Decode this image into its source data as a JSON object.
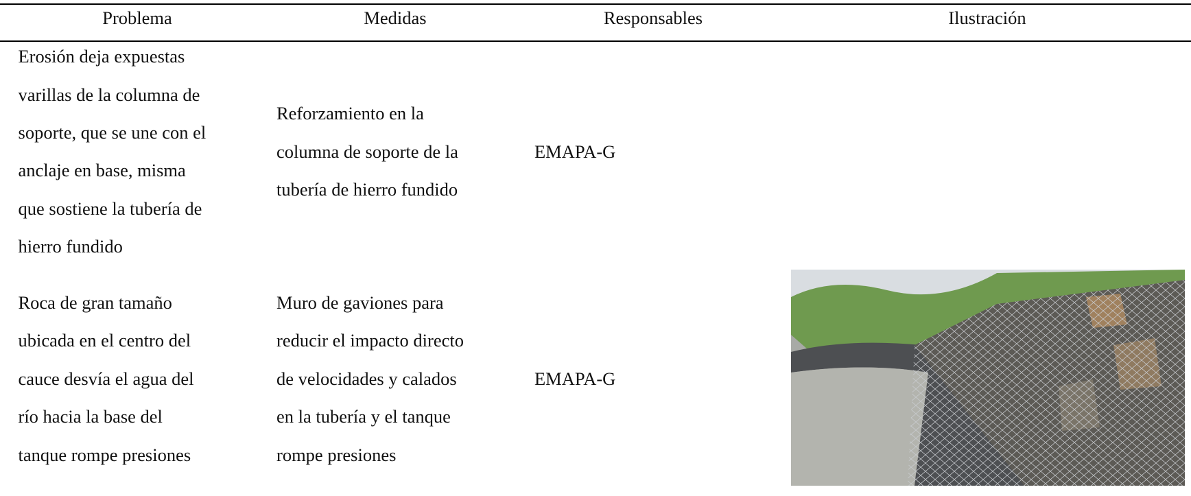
{
  "table": {
    "header": [
      "Problema",
      "Medidas",
      "Responsables",
      "Ilustración"
    ],
    "rows": [
      [
        [
          "Erosión deja expuestas",
          "varillas de la columna de",
          "soporte, que se une con el",
          "anclaje en base, misma",
          "que sostiene la tubería de",
          "hierro fundido"
        ],
        [
          "Reforzamiento en la",
          "columna de soporte de la",
          "tubería de hierro fundido"
        ],
        [
          "EMAPA-G"
        ]
      ],
      [
        [
          "Roca de gran tamaño",
          "ubicada en el centro del",
          "cauce desvía el agua del",
          "río hacia la base del",
          "tanque rompe presiones"
        ],
        [
          "Muro de gaviones para",
          "reducir el impacto directo",
          "de velocidades y calados",
          "en la tubería y el tanque",
          "rompe presiones"
        ],
        [
          "EMAPA-G"
        ]
      ]
    ]
  }
}
